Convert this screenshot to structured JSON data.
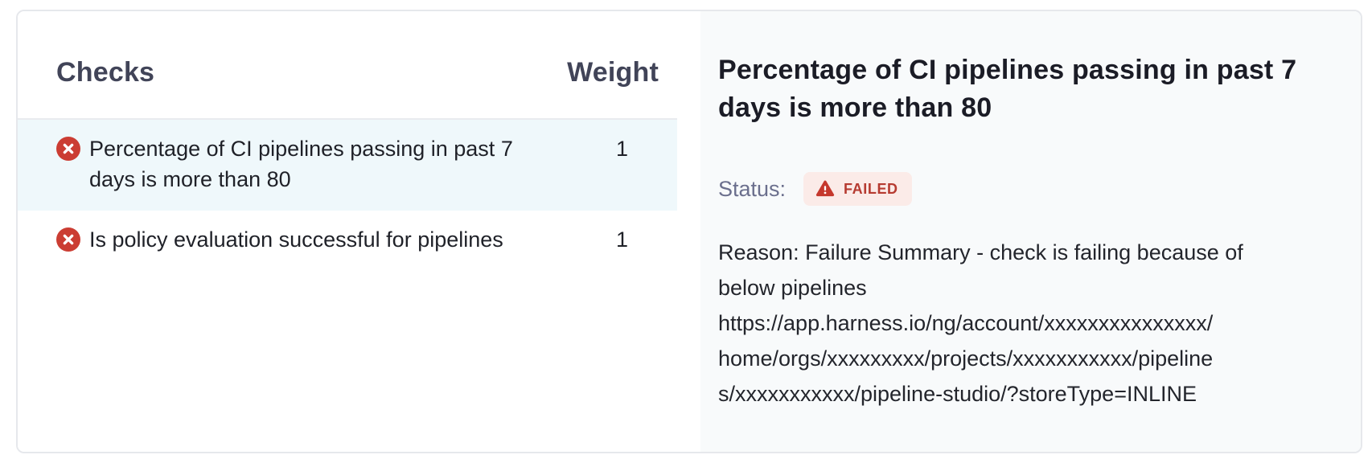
{
  "checks_panel": {
    "columns": {
      "checks": "Checks",
      "weight": "Weight"
    },
    "rows": [
      {
        "status_icon": "failed-x-icon",
        "lines": [
          "Percentage of CI pipelines passing in past 7",
          "days is more than 80"
        ],
        "weight": "1",
        "selected": true
      },
      {
        "status_icon": "failed-x-icon",
        "lines": [
          "Is policy evaluation successful for pipelines"
        ],
        "weight": "1",
        "selected": false
      }
    ]
  },
  "detail_panel": {
    "title_lines": [
      "Percentage of CI pipelines passing in past 7",
      "days is more than 80"
    ],
    "status_label": "Status:",
    "status_badge": {
      "label": "FAILED",
      "icon": "warning-triangle-icon"
    },
    "reason_lines": [
      "Reason: Failure Summary - check is failing because of",
      "below pipelines",
      "https://app.harness.io/ng/account/xxxxxxxxxxxxxxx/",
      "home/orgs/xxxxxxxxx/projects/xxxxxxxxxxx/pipeline",
      "s/xxxxxxxxxxx/pipeline-studio/?storeType=INLINE"
    ]
  },
  "colors": {
    "card_border": "#e6e8ec",
    "left_pane_bg": "#ffffff",
    "right_pane_bg": "#f8fafb",
    "header_text": "#414458",
    "row_text": "#1f2128",
    "selected_row_bg": "#eff8fb",
    "failed_icon_red": "#cb3d33",
    "status_label": "#6b6f8d",
    "badge_bg": "#fbebe8",
    "badge_text": "#b63b31",
    "badge_triangle": "#c5382d",
    "title_text": "#1b1c26",
    "reason_text": "#23252c"
  }
}
